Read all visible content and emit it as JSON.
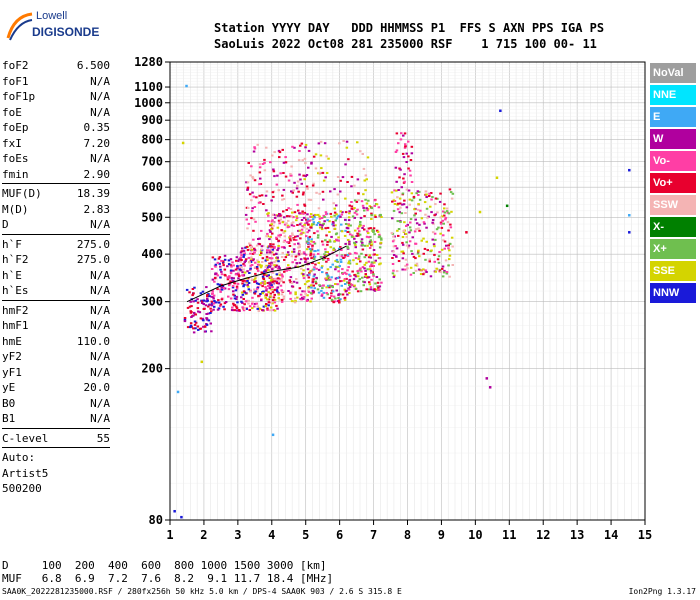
{
  "logo": {
    "line1": "Lowell",
    "line2": "DIGISONDE"
  },
  "header": {
    "line1": "Station YYYY DAY   DDD HHMMSS P1  FFS S AXN PPS IGA PS",
    "line2": "SaoLuis 2022 Oct08 281 235000 RSF    1 715 100 00- 11"
  },
  "params": [
    {
      "group": [
        {
          "k": "foF2",
          "v": "6.500"
        },
        {
          "k": "foF1",
          "v": "N/A"
        },
        {
          "k": "foF1p",
          "v": "N/A"
        },
        {
          "k": "foE",
          "v": "N/A"
        },
        {
          "k": "foEp",
          "v": "0.35"
        },
        {
          "k": "fxI",
          "v": "7.20"
        },
        {
          "k": "foEs",
          "v": "N/A"
        },
        {
          "k": "fmin",
          "v": "2.90"
        }
      ]
    },
    {
      "group": [
        {
          "k": "MUF(D)",
          "v": "18.39"
        },
        {
          "k": "M(D)",
          "v": "2.83"
        },
        {
          "k": "D",
          "v": "N/A"
        }
      ]
    },
    {
      "group": [
        {
          "k": "h`F",
          "v": "275.0"
        },
        {
          "k": "h`F2",
          "v": "275.0"
        },
        {
          "k": "h`E",
          "v": "N/A"
        },
        {
          "k": "h`Es",
          "v": "N/A"
        }
      ]
    },
    {
      "group": [
        {
          "k": "hmF2",
          "v": "N/A"
        },
        {
          "k": "hmF1",
          "v": "N/A"
        },
        {
          "k": "hmE",
          "v": "110.0"
        },
        {
          "k": "yF2",
          "v": "N/A"
        },
        {
          "k": "yF1",
          "v": "N/A"
        },
        {
          "k": "yE",
          "v": "20.0"
        },
        {
          "k": "B0",
          "v": "N/A"
        },
        {
          "k": "B1",
          "v": "N/A"
        }
      ]
    },
    {
      "group": [
        {
          "k": "C-level",
          "v": "55"
        }
      ]
    }
  ],
  "autoscale": {
    "line1": "Auto:",
    "line2": "Artist5",
    "line3": "500200"
  },
  "legend": [
    {
      "label": "NoVal",
      "color": "#9e9e9e"
    },
    {
      "label": "NNE",
      "color": "#00e5ff"
    },
    {
      "label": "E",
      "color": "#3fa9f5"
    },
    {
      "label": "W",
      "color": "#b0009e"
    },
    {
      "label": "Vo-",
      "color": "#ff3ea5"
    },
    {
      "label": "Vo+",
      "color": "#e8002e"
    },
    {
      "label": "SSW",
      "color": "#f4b4b4"
    },
    {
      "label": "X-",
      "color": "#008000"
    },
    {
      "label": "X+",
      "color": "#6fbf4f"
    },
    {
      "label": "SSE",
      "color": "#d4d400"
    },
    {
      "label": "NNW",
      "color": "#1a1ad9"
    }
  ],
  "bottom": {
    "line1": "D     100  200  400  600  800 1000 1500 3000 [km]",
    "line2": "MUF   6.8  6.9  7.2  7.6  8.2  9.1 11.7 18.4 [MHz]"
  },
  "footer": "SAA0K_2022281235000.RSF / 280fx256h 50 kHz 5.0 km / DPS-4 SAA0K 903 / 2.6 S 315.8 E",
  "version": "Ion2Png 1.3.17",
  "chart_data": {
    "type": "scatter",
    "xlim": [
      1,
      15
    ],
    "ylim": [
      80,
      1280
    ],
    "xticks": [
      1,
      2,
      3,
      4,
      5,
      6,
      7,
      8,
      9,
      10,
      11,
      12,
      13,
      14,
      15
    ],
    "yticks": [
      80,
      200,
      300,
      400,
      500,
      600,
      700,
      800,
      900,
      1000,
      1100,
      1280
    ],
    "xtick_labels": [
      "1",
      "2",
      "3",
      "4",
      "5",
      "6",
      "7",
      "8",
      "9",
      "10",
      "11",
      "12",
      "13",
      "14",
      "15"
    ],
    "ytick_labels": [
      "80",
      "200",
      "300",
      "400",
      "500",
      "600",
      "700",
      "800",
      "900",
      "1000",
      "1100",
      "1280"
    ],
    "yscale": "log",
    "grid": true,
    "trace": {
      "x": [
        1.5,
        2.5,
        3.2,
        4.0,
        4.8,
        5.5,
        6.2
      ],
      "y": [
        300,
        330,
        345,
        360,
        370,
        390,
        420
      ]
    },
    "clusters": [
      {
        "x0": 1.4,
        "x1": 2.2,
        "y0": 250,
        "y1": 330,
        "n": 90,
        "colors": [
          "#1a1ad9",
          "#b0009e",
          "#e8002e"
        ]
      },
      {
        "x0": 2.2,
        "x1": 3.0,
        "y0": 285,
        "y1": 400,
        "n": 140,
        "colors": [
          "#1a1ad9",
          "#ff3ea5",
          "#e8002e",
          "#b0009e"
        ]
      },
      {
        "x0": 3.0,
        "x1": 4.2,
        "y0": 285,
        "y1": 430,
        "n": 320,
        "colors": [
          "#ff3ea5",
          "#e8002e",
          "#b0009e",
          "#d4d400",
          "#f4b4b4",
          "#1a1ad9"
        ]
      },
      {
        "x0": 3.8,
        "x1": 5.2,
        "y0": 300,
        "y1": 520,
        "n": 300,
        "colors": [
          "#ff3ea5",
          "#e8002e",
          "#b0009e",
          "#d4d400",
          "#f4b4b4"
        ]
      },
      {
        "x0": 5.0,
        "x1": 6.3,
        "y0": 300,
        "y1": 520,
        "n": 300,
        "colors": [
          "#ff3ea5",
          "#e8002e",
          "#b0009e",
          "#d4d400",
          "#6fbf4f",
          "#3fa9f5"
        ]
      },
      {
        "x0": 6.2,
        "x1": 7.2,
        "y0": 320,
        "y1": 560,
        "n": 220,
        "colors": [
          "#ff3ea5",
          "#e8002e",
          "#b0009e",
          "#d4d400",
          "#6fbf4f"
        ]
      },
      {
        "x0": 7.5,
        "x1": 9.3,
        "y0": 350,
        "y1": 600,
        "n": 260,
        "colors": [
          "#ff3ea5",
          "#e8002e",
          "#b0009e",
          "#d4d400",
          "#6fbf4f",
          "#f4b4b4"
        ]
      },
      {
        "x0": 3.2,
        "x1": 4.8,
        "y0": 430,
        "y1": 800,
        "n": 130,
        "colors": [
          "#f4b4b4",
          "#b0009e",
          "#ff3ea5",
          "#e8002e"
        ]
      },
      {
        "x0": 4.8,
        "x1": 6.8,
        "y0": 520,
        "y1": 800,
        "n": 90,
        "colors": [
          "#f4b4b4",
          "#b0009e",
          "#e8002e",
          "#d4d400"
        ]
      },
      {
        "x0": 7.6,
        "x1": 8.1,
        "y0": 600,
        "y1": 850,
        "n": 35,
        "colors": [
          "#ff3ea5",
          "#e8002e",
          "#b0009e"
        ]
      }
    ],
    "points": [
      {
        "x": 1.45,
        "y": 1115,
        "c": "#3fa9f5"
      },
      {
        "x": 1.35,
        "y": 790,
        "c": "#d4d400"
      },
      {
        "x": 10.7,
        "y": 960,
        "c": "#1a1ad9"
      },
      {
        "x": 14.5,
        "y": 670,
        "c": "#1a1ad9"
      },
      {
        "x": 14.5,
        "y": 510,
        "c": "#3fa9f5"
      },
      {
        "x": 14.5,
        "y": 460,
        "c": "#1a1ad9"
      },
      {
        "x": 10.3,
        "y": 190,
        "c": "#b0009e"
      },
      {
        "x": 10.4,
        "y": 180,
        "c": "#b0009e"
      },
      {
        "x": 1.2,
        "y": 175,
        "c": "#3fa9f5"
      },
      {
        "x": 1.1,
        "y": 85,
        "c": "#1a1ad9"
      },
      {
        "x": 1.3,
        "y": 82,
        "c": "#1a1ad9"
      },
      {
        "x": 4.0,
        "y": 135,
        "c": "#3fa9f5"
      },
      {
        "x": 2.0,
        "y": 260,
        "c": "#e8002e"
      },
      {
        "x": 1.9,
        "y": 210,
        "c": "#d4d400"
      },
      {
        "x": 10.1,
        "y": 520,
        "c": "#d4d400"
      },
      {
        "x": 10.6,
        "y": 640,
        "c": "#d4d400"
      },
      {
        "x": 10.9,
        "y": 540,
        "c": "#008000"
      },
      {
        "x": 9.7,
        "y": 460,
        "c": "#e8002e"
      }
    ]
  }
}
